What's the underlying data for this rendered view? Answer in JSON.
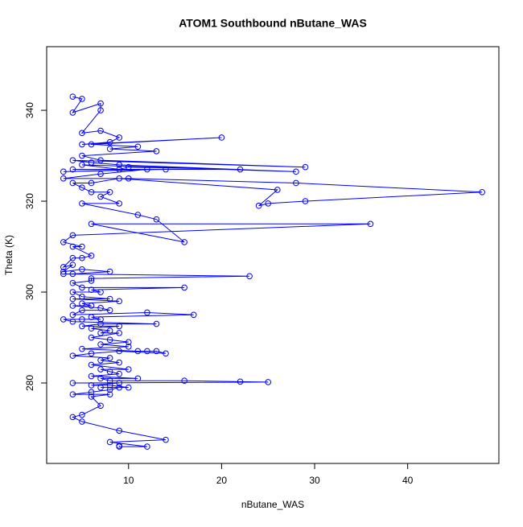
{
  "chart_data": {
    "type": "line",
    "title": "ATOM1 Southbound nButane_WAS",
    "x_label": "nButane_WAS",
    "y_label": "Theta (K)",
    "color": "#0000ff",
    "markers": true,
    "x": [
      4,
      5,
      4,
      7,
      7,
      5,
      7,
      9,
      8,
      5,
      20,
      6,
      11,
      8,
      13,
      5,
      7,
      29,
      4,
      6,
      9,
      28,
      5,
      9,
      10,
      22,
      4,
      14,
      3,
      12,
      7,
      3,
      10,
      28,
      48,
      29,
      25,
      24,
      26,
      9,
      6,
      4,
      5,
      6,
      8,
      7,
      9,
      5,
      11,
      13,
      16,
      6,
      36,
      4,
      3,
      5,
      4,
      6,
      5,
      4,
      3,
      4,
      3,
      5,
      8,
      4,
      3,
      23,
      6,
      6,
      4,
      5,
      16,
      6,
      7,
      4,
      5,
      8,
      4,
      9,
      5,
      6,
      4,
      7,
      8,
      5,
      4,
      12,
      17,
      6,
      7,
      5,
      3,
      4,
      13,
      7,
      5,
      9,
      6,
      8,
      7,
      9,
      6,
      8,
      10,
      7,
      10,
      5,
      11,
      12,
      13,
      14,
      9,
      6,
      4,
      8,
      7,
      9,
      6,
      10,
      7,
      8,
      9,
      6,
      11,
      7,
      8,
      16,
      22,
      25,
      4,
      9,
      6,
      8,
      10,
      7,
      9,
      8,
      6,
      4,
      8,
      6,
      7,
      5,
      4,
      5,
      9,
      14,
      8,
      12,
      9,
      9
    ],
    "values": [
      343,
      342.5,
      339.5,
      341.5,
      340,
      335,
      335.5,
      334,
      333,
      332.5,
      334,
      332.5,
      332,
      331.5,
      331,
      330,
      329,
      327.5,
      329,
      328.5,
      328,
      326.5,
      328,
      327,
      327.5,
      327,
      327,
      327,
      326.5,
      327,
      326,
      325,
      325,
      324,
      322,
      320,
      319.5,
      319,
      322.5,
      325,
      324,
      324,
      323,
      322,
      322,
      321,
      319.5,
      319.5,
      317,
      316,
      311,
      315,
      315,
      312.5,
      311,
      310,
      310,
      308,
      307.5,
      307.5,
      305.5,
      306,
      304.5,
      305,
      304.5,
      304,
      304,
      303.5,
      303,
      302.5,
      302,
      301,
      301,
      300.5,
      300,
      300,
      299,
      298.5,
      298.5,
      298,
      297.5,
      297,
      297,
      296.5,
      296,
      296,
      295,
      295.5,
      295,
      294.5,
      294,
      294,
      294,
      293.5,
      293,
      293,
      292.5,
      292.5,
      292,
      291.5,
      291,
      291,
      290,
      289.5,
      289,
      288.5,
      288,
      287.5,
      287,
      287,
      287,
      286.5,
      287,
      286.5,
      286,
      285.5,
      285,
      284.5,
      284,
      283,
      283,
      282.5,
      282,
      281.5,
      281,
      281,
      280.5,
      280.5,
      280.3,
      280.2,
      280,
      280,
      279.5,
      279.5,
      279,
      279,
      279,
      278.5,
      278,
      277.5,
      277.5,
      277,
      275,
      273,
      272.5,
      271.5,
      269.5,
      267.5,
      267,
      266,
      266,
      266.2
    ],
    "xlim": [
      1.2,
      49.8
    ],
    "ylim": [
      262.3,
      354
    ],
    "xticks": [
      10,
      20,
      30,
      40
    ],
    "yticks": [
      280,
      300,
      320,
      340
    ]
  }
}
